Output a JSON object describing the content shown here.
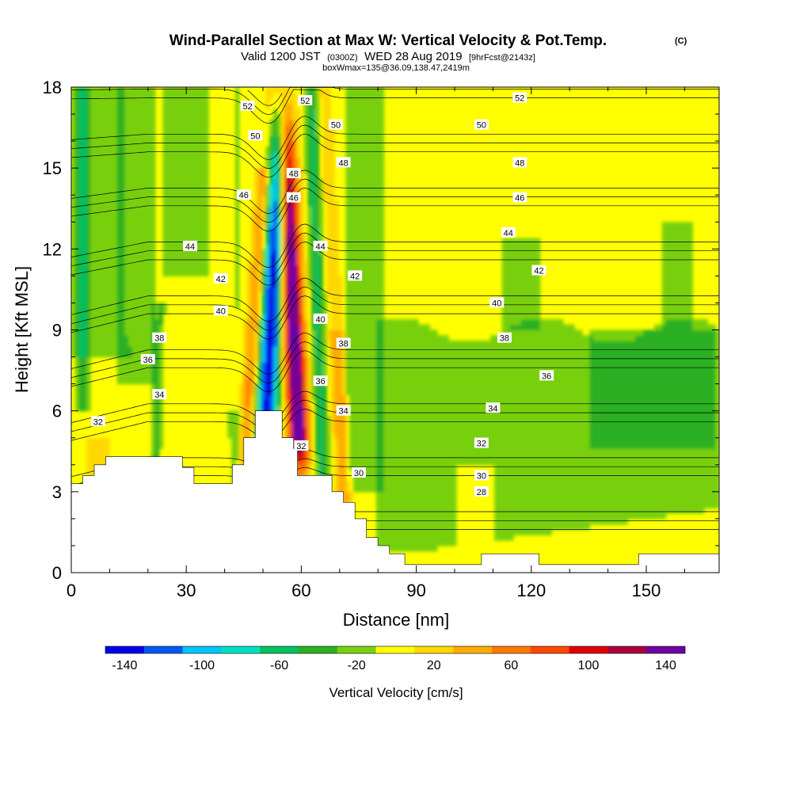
{
  "chart_data": {
    "type": "heatmap",
    "title": "Wind-Parallel Section at Max W: Vertical Velocity & Pot.Temp.",
    "title_mark": "(C)",
    "subtitle": {
      "prefix": "Valid 1200 JST",
      "utc": "(0300Z)",
      "date": "WED 28 Aug 2019",
      "forecast": "[9hrFcst@2143z]"
    },
    "box_info": "boxWmax=135@36.09,138.47,2419m",
    "xlabel": "Distance [nm]",
    "ylabel": "Height [Kft MSL]",
    "xlim": [
      0,
      169
    ],
    "ylim": [
      0,
      18
    ],
    "x_ticks": [
      "0",
      "30",
      "60",
      "90",
      "120",
      "150"
    ],
    "y_ticks": [
      "0",
      "3",
      "6",
      "9",
      "12",
      "15",
      "18"
    ],
    "x_tick_values": [
      0,
      30,
      60,
      90,
      120,
      150
    ],
    "y_tick_values": [
      0,
      3,
      6,
      9,
      12,
      15,
      18
    ],
    "colorbar": {
      "label": "Vertical Velocity [cm/s]",
      "ticks": [
        "-140",
        "-100",
        "-60",
        "-20",
        "20",
        "60",
        "100",
        "140"
      ],
      "tick_values": [
        -140,
        -100,
        -60,
        -20,
        20,
        60,
        100,
        140
      ],
      "range": [
        -150,
        150
      ],
      "step": 20,
      "colors": [
        "#0000e8",
        "#0058f4",
        "#00c4f8",
        "#00e0c0",
        "#00c060",
        "#2cb020",
        "#78d010",
        "#ffff00",
        "#ffd800",
        "#ffac00",
        "#ff7800",
        "#ff4800",
        "#e00000",
        "#a8003c",
        "#6e00a0"
      ]
    },
    "contour_field": "potential temperature",
    "contour_levels": [
      28,
      30,
      32,
      34,
      36,
      38,
      40,
      42,
      44,
      46,
      48,
      50,
      52
    ],
    "contour_labels": [
      {
        "text": "52",
        "x": 46,
        "y": 17.3
      },
      {
        "text": "52",
        "x": 61,
        "y": 17.5
      },
      {
        "text": "52",
        "x": 117,
        "y": 17.6
      },
      {
        "text": "50",
        "x": 48,
        "y": 16.2
      },
      {
        "text": "50",
        "x": 69,
        "y": 16.6
      },
      {
        "text": "50",
        "x": 107,
        "y": 16.6
      },
      {
        "text": "48",
        "x": 58,
        "y": 14.8
      },
      {
        "text": "48",
        "x": 71,
        "y": 15.2
      },
      {
        "text": "48",
        "x": 117,
        "y": 15.2
      },
      {
        "text": "46",
        "x": 45,
        "y": 14.0
      },
      {
        "text": "46",
        "x": 58,
        "y": 13.9
      },
      {
        "text": "46",
        "x": 117,
        "y": 13.9
      },
      {
        "text": "44",
        "x": 31,
        "y": 12.1
      },
      {
        "text": "44",
        "x": 65,
        "y": 12.1
      },
      {
        "text": "44",
        "x": 114,
        "y": 12.6
      },
      {
        "text": "42",
        "x": 39,
        "y": 10.9
      },
      {
        "text": "42",
        "x": 74,
        "y": 11.0
      },
      {
        "text": "42",
        "x": 122,
        "y": 11.2
      },
      {
        "text": "40",
        "x": 39,
        "y": 9.7
      },
      {
        "text": "40",
        "x": 65,
        "y": 9.4
      },
      {
        "text": "40",
        "x": 111,
        "y": 10.0
      },
      {
        "text": "38",
        "x": 23,
        "y": 8.7
      },
      {
        "text": "38",
        "x": 71,
        "y": 8.5
      },
      {
        "text": "38",
        "x": 113,
        "y": 8.7
      },
      {
        "text": "36",
        "x": 20,
        "y": 7.9
      },
      {
        "text": "36",
        "x": 65,
        "y": 7.1
      },
      {
        "text": "36",
        "x": 124,
        "y": 7.3
      },
      {
        "text": "34",
        "x": 23,
        "y": 6.6
      },
      {
        "text": "34",
        "x": 71,
        "y": 6.0
      },
      {
        "text": "34",
        "x": 110,
        "y": 6.1
      },
      {
        "text": "32",
        "x": 7,
        "y": 5.6
      },
      {
        "text": "32",
        "x": 60,
        "y": 4.7
      },
      {
        "text": "32",
        "x": 107,
        "y": 4.8
      },
      {
        "text": "30",
        "x": 75,
        "y": 3.7
      },
      {
        "text": "30",
        "x": 107,
        "y": 3.6
      },
      {
        "text": "28",
        "x": 107,
        "y": 3.0
      }
    ],
    "terrain": [
      [
        0,
        3.3
      ],
      [
        3,
        3.3
      ],
      [
        3,
        3.6
      ],
      [
        6,
        3.6
      ],
      [
        6,
        4.0
      ],
      [
        9,
        4.0
      ],
      [
        9,
        4.3
      ],
      [
        29,
        4.3
      ],
      [
        29,
        3.9
      ],
      [
        32,
        3.9
      ],
      [
        32,
        3.3
      ],
      [
        42,
        3.3
      ],
      [
        42,
        4.0
      ],
      [
        45,
        4.0
      ],
      [
        45,
        5.0
      ],
      [
        48,
        5.0
      ],
      [
        48,
        6.0
      ],
      [
        55,
        6.0
      ],
      [
        55,
        5.0
      ],
      [
        58,
        5.0
      ],
      [
        58,
        4.6
      ],
      [
        59,
        4.6
      ],
      [
        59,
        3.6
      ],
      [
        68,
        3.6
      ],
      [
        68,
        3.0
      ],
      [
        71,
        3.0
      ],
      [
        71,
        2.6
      ],
      [
        74,
        2.6
      ],
      [
        74,
        2.0
      ],
      [
        77,
        2.0
      ],
      [
        77,
        1.3
      ],
      [
        80,
        1.3
      ],
      [
        80,
        1.0
      ],
      [
        83,
        1.0
      ],
      [
        83,
        0.7
      ],
      [
        87,
        0.7
      ],
      [
        87,
        0.3
      ],
      [
        107,
        0.3
      ],
      [
        107,
        0.7
      ],
      [
        122,
        0.7
      ],
      [
        122,
        0.3
      ],
      [
        148,
        0.3
      ],
      [
        148,
        0.7
      ],
      [
        169,
        0.7
      ]
    ]
  }
}
